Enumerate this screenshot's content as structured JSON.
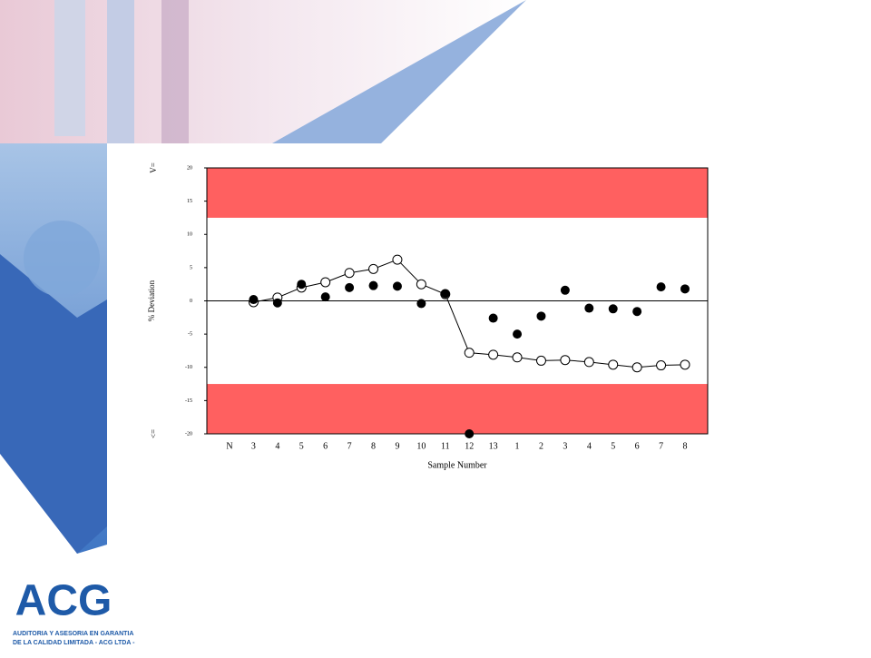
{
  "chart_data": {
    "type": "scatter",
    "categories": [
      "N",
      "3",
      "4",
      "5",
      "6",
      "7",
      "8",
      "9",
      "10",
      "11",
      "12",
      "13",
      "1",
      "2",
      "3",
      "4",
      "5",
      "6",
      "7",
      "8"
    ],
    "series": [
      {
        "color": "#000000",
        "marker": "open",
        "line": true,
        "values": [
          null,
          -0.2,
          0.5,
          2,
          2.8,
          4.2,
          4.8,
          6.2,
          2.5,
          1.0,
          -7.8,
          -8.1,
          -8.5,
          -9.0,
          -8.9,
          -9.2,
          -9.6,
          -10,
          -9.7,
          -9.6
        ]
      },
      {
        "color": "#000000",
        "marker": "filled",
        "line": false,
        "values": [
          null,
          0.2,
          -0.3,
          2.5,
          0.6,
          2,
          2.3,
          2.2,
          -0.4,
          1.1,
          -20,
          -2.6,
          -5,
          -2.3,
          1.6,
          -1.1,
          -1.2,
          -1.6,
          2.1,
          1.8
        ]
      }
    ],
    "ylim": [
      -20,
      20
    ],
    "yticks": [
      -20,
      -15,
      -10,
      -5,
      0,
      5,
      10,
      15,
      20
    ],
    "bands": [
      [
        12.5,
        20
      ],
      [
        -20,
        -12.5
      ]
    ],
    "band_color": "#ff6060",
    "hline": 0,
    "ylabel": "% Deviation",
    "xlabel": "Sample Number",
    "annotations": [
      "V=",
      "<="
    ]
  },
  "logo": {
    "name": "ACG",
    "line1": "AUDITORIA Y ASESORIA EN GARANTIA",
    "line2": "DE LA CALIDAD LIMITADA - ACG LTDA -"
  }
}
